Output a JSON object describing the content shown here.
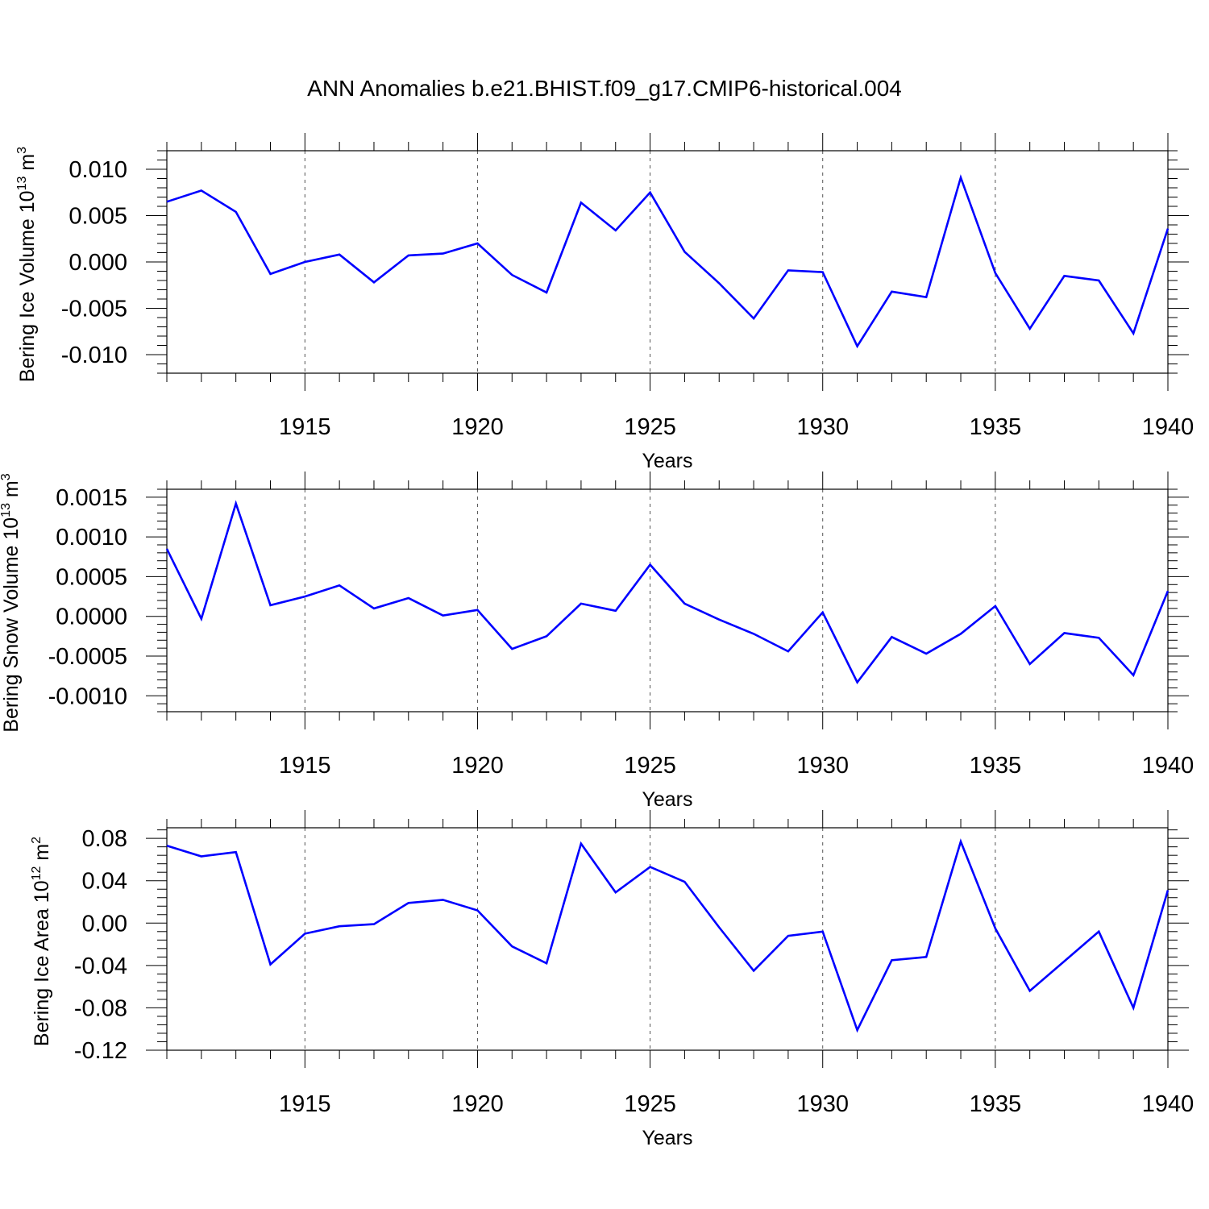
{
  "title": "ANN Anomalies b.e21.BHIST.f09_g17.CMIP6-historical.004",
  "colors": {
    "line": "#0000ff",
    "axis": "#000000",
    "grid": "#555555"
  },
  "chart_data": [
    {
      "type": "line",
      "ylabel": "Bering Ice Volume 10",
      "ylabel_exp": "13",
      "ylabel_unit": " m",
      "ylabel_unit_exp": "3",
      "xlabel": "Years",
      "xlim": [
        1911,
        1940
      ],
      "ylim": [
        -0.012,
        0.012
      ],
      "xticks": [
        1915,
        1920,
        1925,
        1930,
        1935,
        1940
      ],
      "xtick_labels": [
        "1915",
        "1920",
        "1925",
        "1930",
        "1935",
        "1940"
      ],
      "yticks": [
        0.01,
        0.005,
        0.0,
        -0.005,
        -0.01
      ],
      "ytick_labels": [
        "0.010",
        "0.005",
        "0.000",
        "-0.005",
        "-0.010"
      ],
      "grid": "dashed vertical at major x ticks",
      "x": [
        1911,
        1912,
        1913,
        1914,
        1915,
        1916,
        1917,
        1918,
        1919,
        1920,
        1921,
        1922,
        1923,
        1924,
        1925,
        1926,
        1927,
        1928,
        1929,
        1930,
        1931,
        1932,
        1933,
        1934,
        1935,
        1936,
        1937,
        1938,
        1939,
        1940
      ],
      "values": [
        0.0065,
        0.0077,
        0.0054,
        -0.0013,
        0.0,
        0.0008,
        -0.0022,
        0.0007,
        0.0009,
        0.002,
        -0.0014,
        -0.0033,
        0.0064,
        0.0034,
        0.0075,
        0.0011,
        -0.0023,
        -0.0061,
        -0.0009,
        -0.0011,
        -0.0091,
        -0.0032,
        -0.0038,
        0.0091,
        -0.0012,
        -0.0072,
        -0.0015,
        -0.002,
        -0.0077,
        0.0036
      ]
    },
    {
      "type": "line",
      "ylabel": "Bering Snow Volume 10",
      "ylabel_exp": "13",
      "ylabel_unit": " m",
      "ylabel_unit_exp": "3",
      "xlabel": "Years",
      "xlim": [
        1911,
        1940
      ],
      "ylim": [
        -0.0012,
        0.0016
      ],
      "xticks": [
        1915,
        1920,
        1925,
        1930,
        1935,
        1940
      ],
      "xtick_labels": [
        "1915",
        "1920",
        "1925",
        "1930",
        "1935",
        "1940"
      ],
      "yticks": [
        0.0015,
        0.001,
        0.0005,
        0.0,
        -0.0005,
        -0.001
      ],
      "ytick_labels": [
        "0.0015",
        "0.0010",
        "0.0005",
        "0.0000",
        "-0.0005",
        "-0.0010"
      ],
      "grid": "dashed vertical at major x ticks",
      "x": [
        1911,
        1912,
        1913,
        1914,
        1915,
        1916,
        1917,
        1918,
        1919,
        1920,
        1921,
        1922,
        1923,
        1924,
        1925,
        1926,
        1927,
        1928,
        1929,
        1930,
        1931,
        1932,
        1933,
        1934,
        1935,
        1936,
        1937,
        1938,
        1939,
        1940
      ],
      "values": [
        0.00085,
        -3e-05,
        0.00142,
        0.00014,
        0.00025,
        0.00039,
        0.0001,
        0.00023,
        1e-05,
        8e-05,
        -0.00041,
        -0.00025,
        0.00016,
        7e-05,
        0.00065,
        0.00016,
        -4e-05,
        -0.00022,
        -0.00044,
        5e-05,
        -0.00083,
        -0.00026,
        -0.00047,
        -0.00022,
        0.00013,
        -0.0006,
        -0.00021,
        -0.00027,
        -0.00074,
        0.00032
      ]
    },
    {
      "type": "line",
      "ylabel": "Bering Ice Area 10",
      "ylabel_exp": "12",
      "ylabel_unit": " m",
      "ylabel_unit_exp": "2",
      "xlabel": "Years",
      "xlim": [
        1911,
        1940
      ],
      "ylim": [
        -0.12,
        0.09
      ],
      "xticks": [
        1915,
        1920,
        1925,
        1930,
        1935,
        1940
      ],
      "xtick_labels": [
        "1915",
        "1920",
        "1925",
        "1930",
        "1935",
        "1940"
      ],
      "yticks": [
        0.08,
        0.04,
        0.0,
        -0.04,
        -0.08,
        -0.12
      ],
      "ytick_labels": [
        "0.08",
        "0.04",
        "0.00",
        "-0.04",
        "-0.08",
        "-0.12"
      ],
      "grid": "dashed vertical at major x ticks",
      "x": [
        1911,
        1912,
        1913,
        1914,
        1915,
        1916,
        1917,
        1918,
        1919,
        1920,
        1921,
        1922,
        1923,
        1924,
        1925,
        1926,
        1927,
        1928,
        1929,
        1930,
        1931,
        1932,
        1933,
        1934,
        1935,
        1936,
        1937,
        1938,
        1939,
        1940
      ],
      "values": [
        0.073,
        0.063,
        0.067,
        -0.039,
        -0.01,
        -0.003,
        -0.001,
        0.019,
        0.022,
        0.012,
        -0.022,
        -0.038,
        0.075,
        0.029,
        0.053,
        0.039,
        -0.004,
        -0.045,
        -0.012,
        -0.008,
        -0.101,
        -0.035,
        -0.032,
        0.077,
        -0.005,
        -0.064,
        -0.036,
        -0.008,
        -0.08,
        0.031
      ]
    }
  ]
}
